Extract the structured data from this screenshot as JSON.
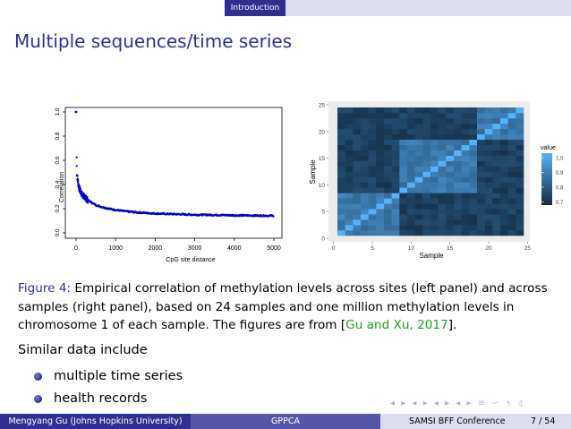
{
  "nav": {
    "section": "Introduction"
  },
  "slide": {
    "title": "Multiple sequences/time series"
  },
  "colors": {
    "accent": "#2e3192",
    "citation": "#18a518",
    "scatter": "#0000cc"
  },
  "chart_data": [
    {
      "type": "scatter",
      "xlabel": "CpG site distance",
      "ylabel": "Correlation",
      "xlim": [
        0,
        5000
      ],
      "ylim": [
        0,
        1.0
      ],
      "x_ticks": [
        "0",
        "1000",
        "2000",
        "3000",
        "4000",
        "5000"
      ],
      "y_ticks": [
        "0.0",
        "0.2",
        "0.4",
        "0.6",
        "0.8",
        "1.0"
      ],
      "grid": false,
      "points": [
        [
          0,
          1.0
        ],
        [
          20,
          0.5
        ],
        [
          40,
          0.44
        ],
        [
          60,
          0.4
        ],
        [
          80,
          0.37
        ],
        [
          100,
          0.35
        ],
        [
          150,
          0.32
        ],
        [
          200,
          0.3
        ],
        [
          300,
          0.27
        ],
        [
          400,
          0.25
        ],
        [
          500,
          0.23
        ],
        [
          700,
          0.21
        ],
        [
          900,
          0.195
        ],
        [
          1200,
          0.18
        ],
        [
          1500,
          0.17
        ],
        [
          2000,
          0.16
        ],
        [
          2500,
          0.155
        ],
        [
          3000,
          0.15
        ],
        [
          3500,
          0.148
        ],
        [
          4000,
          0.145
        ],
        [
          4500,
          0.143
        ],
        [
          5000,
          0.142
        ]
      ]
    },
    {
      "type": "heatmap",
      "xlabel": "Sample",
      "ylabel": "Sample",
      "x_ticks": [
        "0",
        "5",
        "10",
        "15",
        "20",
        "25"
      ],
      "y_ticks": [
        "0",
        "5",
        "10",
        "15",
        "20",
        "25"
      ],
      "legend": {
        "title": "value",
        "ticks": [
          "1.0",
          "0.9",
          "0.8",
          "0.7"
        ],
        "position": "right"
      },
      "n": 24,
      "groups": [
        [
          1,
          8
        ],
        [
          9,
          18
        ],
        [
          19,
          24
        ]
      ]
    }
  ],
  "caption": {
    "fig_label": "Figure 4:",
    "text_before_cite": " Empirical correlation of methylation levels across sites (left panel) and across samples (right panel), based on 24 samples and one million methylation levels in chromosome 1 of each sample. The figures are from [",
    "cite": "Gu and Xu, 2017",
    "text_after_cite": "]."
  },
  "similar": {
    "intro": "Similar data include",
    "items": [
      "multiple time series",
      "health records"
    ]
  },
  "nav_symbols": "◂ ▸ ◂ ▸ ◂ ▸ ◂ ▸ ≡ ∽ ৭ ৫",
  "footer": {
    "author": "Mengyang Gu (Johns Hopkins University)",
    "short_title": "GPPCA",
    "conference": "SAMSI BFF Conference",
    "page": "7 / 54"
  }
}
